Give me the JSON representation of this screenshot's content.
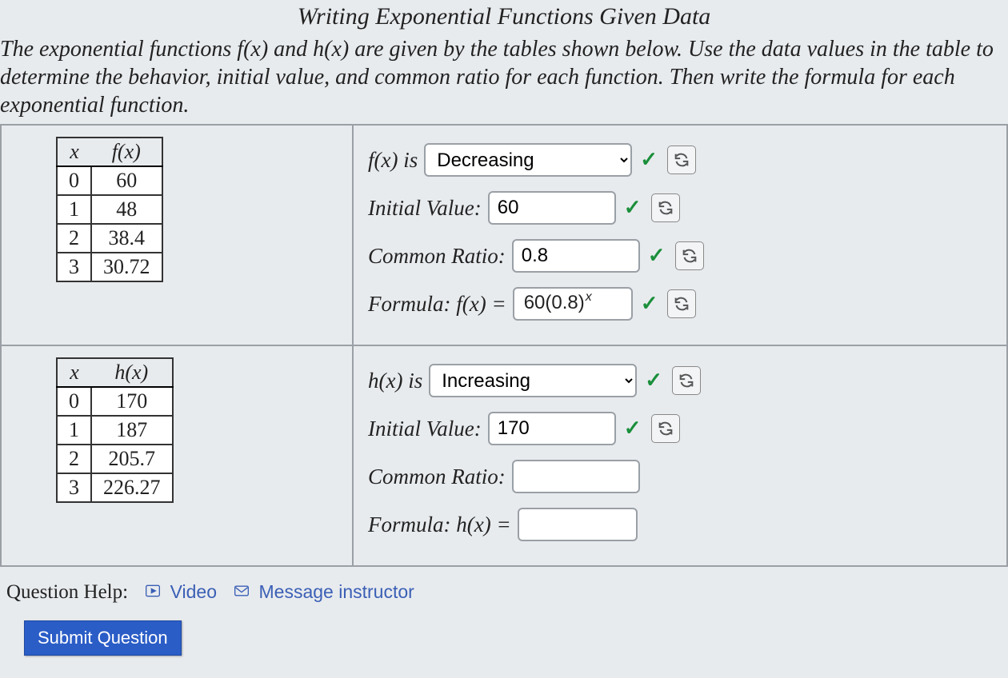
{
  "title": "Writing Exponential Functions Given Data",
  "prompt_html": "The exponential functions <span class='math'>f(x)</span> and <span class='math'>h(x)</span> are given by the tables shown below. Use the data values in the table to determine the behavior, initial value, and common ratio for each function. Then write the formula for each exponential function.",
  "behavior_options": [
    "Increasing",
    "Decreasing"
  ],
  "functions": [
    {
      "name": "f",
      "header_x": "x",
      "header_fx": "f(x)",
      "rows": [
        {
          "x": "0",
          "y": "60"
        },
        {
          "x": "1",
          "y": "48"
        },
        {
          "x": "2",
          "y": "38.4"
        },
        {
          "x": "3",
          "y": "30.72"
        }
      ],
      "behavior_label": "f(x) is",
      "behavior_value": "Decreasing",
      "behavior_correct": true,
      "initial_label": "Initial Value:",
      "initial_value": "60",
      "initial_correct": true,
      "ratio_label": "Common Ratio:",
      "ratio_value": "0.8",
      "ratio_correct": true,
      "formula_label": "Formula: f(x) =",
      "formula_base": "60(0.8)",
      "formula_exp": "x",
      "formula_correct": true
    },
    {
      "name": "h",
      "header_x": "x",
      "header_fx": "h(x)",
      "rows": [
        {
          "x": "0",
          "y": "170"
        },
        {
          "x": "1",
          "y": "187"
        },
        {
          "x": "2",
          "y": "205.7"
        },
        {
          "x": "3",
          "y": "226.27"
        }
      ],
      "behavior_label": "h(x) is",
      "behavior_value": "Increasing",
      "behavior_correct": true,
      "initial_label": "Initial Value:",
      "initial_value": "170",
      "initial_correct": true,
      "ratio_label": "Common Ratio:",
      "ratio_value": "",
      "ratio_correct": null,
      "formula_label": "Formula: h(x) =",
      "formula_base": "",
      "formula_exp": "",
      "formula_correct": null
    }
  ],
  "help": {
    "label": "Question Help:",
    "video": "Video",
    "message": "Message instructor"
  },
  "submit_label": "Submit Question",
  "colors": {
    "bg": "#e8ebee",
    "border": "#9aa0a6",
    "check": "#1a8f3a",
    "link": "#3a5fb5",
    "button": "#2b5dc7"
  }
}
